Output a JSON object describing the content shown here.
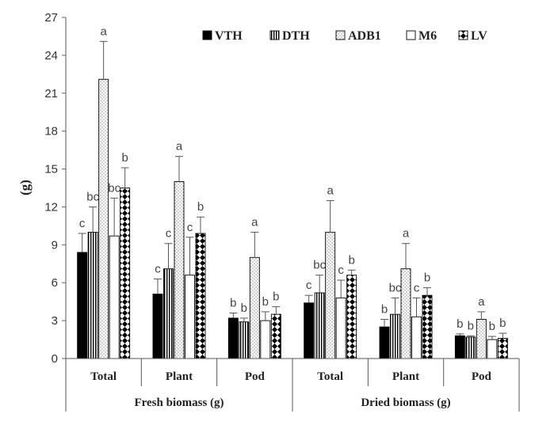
{
  "chart_data": {
    "type": "bar",
    "ylabel": "(g)",
    "ylim": [
      0,
      27
    ],
    "yticks": [
      "0",
      "3",
      "6",
      "9",
      "12",
      "15",
      "18",
      "21",
      "24",
      "27"
    ],
    "grid": false,
    "legend_position": "top-right",
    "groups": [
      {
        "label": "Fresh biomass (g)",
        "categories": [
          "Total",
          "Plant",
          "Pod"
        ]
      },
      {
        "label": "Dried biomass (g)",
        "categories": [
          "Total",
          "Plant",
          "Pod"
        ]
      }
    ],
    "categories": [
      "Total",
      "Plant",
      "Pod",
      "Total",
      "Plant",
      "Pod"
    ],
    "series": [
      {
        "name": "VTH",
        "pattern": "solid",
        "values": [
          8.4,
          5.1,
          3.2,
          4.4,
          2.5,
          1.8
        ],
        "errors": [
          1.5,
          1.2,
          0.4,
          0.6,
          0.6,
          0.15
        ],
        "letters": [
          "c",
          "c",
          "b",
          "c",
          "b",
          "b"
        ]
      },
      {
        "name": "DTH",
        "pattern": "vertical-lines",
        "values": [
          10.0,
          7.1,
          2.9,
          5.2,
          3.5,
          1.7
        ],
        "errors": [
          2.0,
          2.0,
          0.3,
          1.4,
          1.3,
          0.1
        ],
        "letters": [
          "bc",
          "c",
          "b",
          "bc",
          "bc",
          "b"
        ]
      },
      {
        "name": "ADB1",
        "pattern": "dots",
        "values": [
          22.1,
          14.0,
          8.0,
          10.0,
          7.1,
          3.1
        ],
        "errors": [
          3.0,
          2.0,
          2.0,
          2.5,
          2.0,
          0.6
        ],
        "letters": [
          "a",
          "a",
          "a",
          "a",
          "a",
          "a"
        ]
      },
      {
        "name": "M6",
        "pattern": "hollow",
        "values": [
          9.7,
          6.6,
          3.0,
          4.8,
          3.3,
          1.5
        ],
        "errors": [
          3.0,
          3.0,
          0.7,
          1.4,
          1.5,
          0.25
        ],
        "letters": [
          "bc",
          "c",
          "b",
          "c",
          "c",
          "b"
        ]
      },
      {
        "name": "LV",
        "pattern": "diamonds",
        "values": [
          13.5,
          9.9,
          3.5,
          6.6,
          5.0,
          1.6
        ],
        "errors": [
          1.6,
          1.3,
          0.6,
          0.4,
          0.6,
          0.4
        ],
        "letters": [
          "b",
          "b",
          "b",
          "b",
          "b",
          "b"
        ]
      }
    ]
  }
}
